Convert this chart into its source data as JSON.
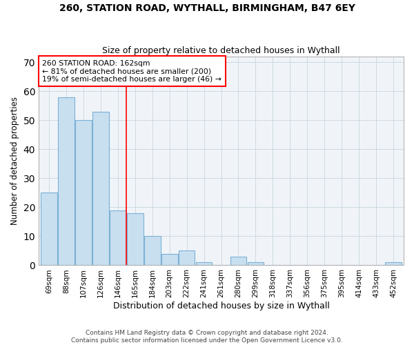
{
  "title1": "260, STATION ROAD, WYTHALL, BIRMINGHAM, B47 6EY",
  "title2": "Size of property relative to detached houses in Wythall",
  "xlabel": "Distribution of detached houses by size in Wythall",
  "ylabel": "Number of detached properties",
  "categories": [
    "69sqm",
    "88sqm",
    "107sqm",
    "126sqm",
    "146sqm",
    "165sqm",
    "184sqm",
    "203sqm",
    "222sqm",
    "241sqm",
    "261sqm",
    "280sqm",
    "299sqm",
    "318sqm",
    "337sqm",
    "356sqm",
    "375sqm",
    "395sqm",
    "414sqm",
    "433sqm",
    "452sqm"
  ],
  "values": [
    25,
    58,
    50,
    53,
    19,
    18,
    10,
    4,
    5,
    1,
    0,
    3,
    1,
    0,
    0,
    0,
    0,
    0,
    0,
    0,
    1
  ],
  "bar_color": "#c8dff0",
  "bar_edge_color": "#7ab0d4",
  "ref_line_x": 4.5,
  "ref_line_label": "260 STATION ROAD: 162sqm",
  "annotation_line1": "← 81% of detached houses are smaller (200)",
  "annotation_line2": "19% of semi-detached houses are larger (46) →",
  "ylim": [
    0,
    72
  ],
  "yticks": [
    0,
    10,
    20,
    30,
    40,
    50,
    60,
    70
  ],
  "footer1": "Contains HM Land Registry data © Crown copyright and database right 2024.",
  "footer2": "Contains public sector information licensed under the Open Government Licence v3.0."
}
